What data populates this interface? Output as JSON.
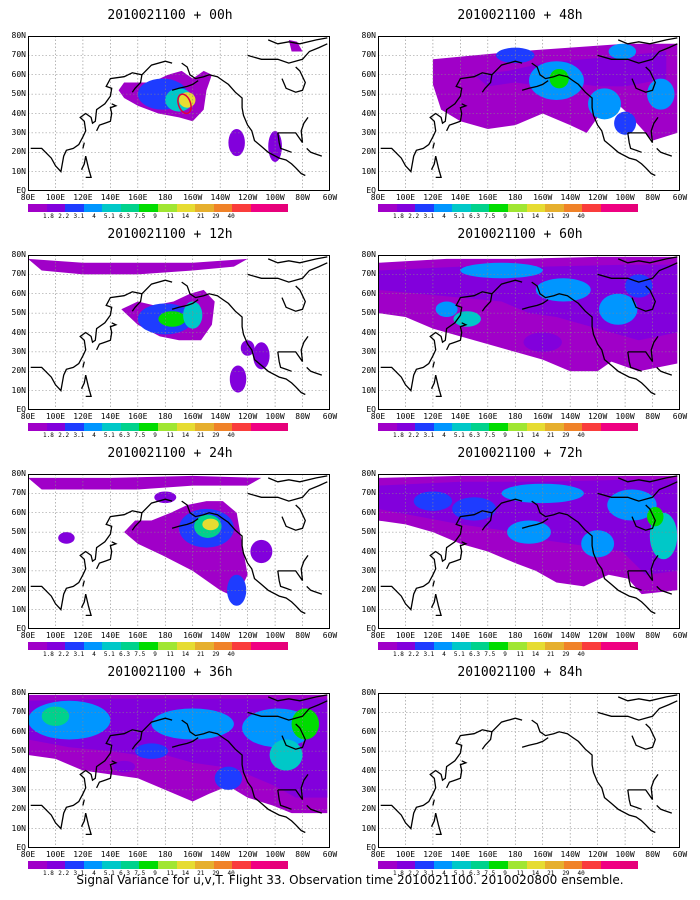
{
  "footer": "Signal Variance for u,v,T. Flight 33. Observation time 2010021100. 2010020800 ensemble.",
  "lat_labels": [
    "80N",
    "70N",
    "60N",
    "50N",
    "40N",
    "30N",
    "20N",
    "10N",
    "EQ"
  ],
  "lon_labels": [
    "80E",
    "100E",
    "120E",
    "140E",
    "160E",
    "180",
    "160W",
    "140W",
    "120W",
    "100W",
    "80W",
    "60W"
  ],
  "colorbar": {
    "colors": [
      "#a000c8",
      "#8200dc",
      "#1e3cff",
      "#0096ff",
      "#00c8c8",
      "#00d28c",
      "#00dc00",
      "#a0e632",
      "#e6dc32",
      "#e6af2d",
      "#f08228",
      "#fa3c3c",
      "#f00082"
    ],
    "labels": [
      "1.8",
      "2.2",
      "3.1",
      "4",
      "5.1",
      "6.3",
      "7.5",
      "9",
      "11",
      "14",
      "21",
      "29",
      "40"
    ]
  },
  "panels": [
    {
      "title": "2010021100 + 00h"
    },
    {
      "title": "2010021100 + 48h"
    },
    {
      "title": "2010021100 + 12h"
    },
    {
      "title": "2010021100 + 60h"
    },
    {
      "title": "2010021100 + 24h"
    },
    {
      "title": "2010021100 + 72h"
    },
    {
      "title": "2010021100 + 36h"
    },
    {
      "title": "2010021100 + 84h"
    }
  ]
}
